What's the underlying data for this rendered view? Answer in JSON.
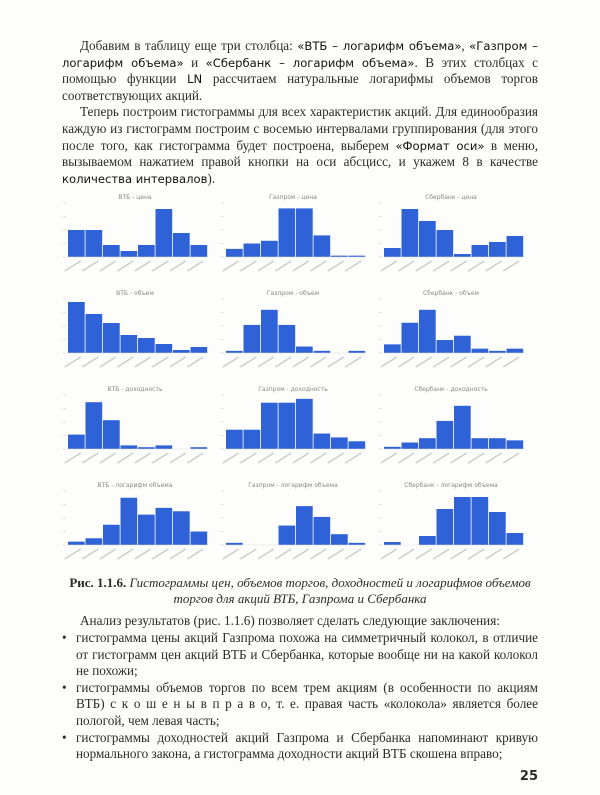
{
  "intro": {
    "p1_a": "Добавим в таблицу еще три столбца: ",
    "p1_b": "«ВТБ – логарифм объема»",
    "p1_c": ", ",
    "p1_d": "«Газпром – логарифм объема»",
    "p1_e": " и ",
    "p1_f": "«Сбербанк – логарифм объема»",
    "p1_g": ". В этих столбцах с помощью функции ",
    "p1_h": "LN",
    "p1_i": " рассчитаем натуральные логарифмы объемов торгов соответствующих акций.",
    "p2_a": "Теперь построим гистограммы для всех характеристик акций. Для единообразия каждую из гистограмм построим с восемью интервалами группирования (для этого после того, как гистограмма будет построена, выберем ",
    "p2_b": "«Формат оси»",
    "p2_c": " в меню, вызываемом нажатием правой кнопки на оси абсцисс, и укажем 8 в качестве ",
    "p2_d": "количества интервалов",
    "p2_e": ")."
  },
  "chart_data": [
    {
      "type": "bar",
      "title": "ВТБ - цена",
      "values": [
        9,
        9,
        4,
        2,
        4,
        16,
        8,
        4
      ],
      "ylim": [
        0,
        18
      ]
    },
    {
      "type": "bar",
      "title": "Газпром - цена",
      "values": [
        3,
        5,
        6,
        18,
        18,
        8,
        0.5,
        0.5
      ],
      "ylim": [
        0,
        20
      ]
    },
    {
      "type": "bar",
      "title": "Сбербанк - цена",
      "values": [
        3,
        16,
        12,
        9,
        1,
        4,
        5,
        7
      ],
      "ylim": [
        0,
        18
      ]
    },
    {
      "type": "bar",
      "title": "ВТБ - объем",
      "values": [
        17,
        13,
        10,
        6,
        5,
        3,
        1,
        2
      ],
      "ylim": [
        0,
        18
      ]
    },
    {
      "type": "bar",
      "title": "Газпром - объем",
      "values": [
        1,
        13,
        20,
        13,
        3,
        1,
        0,
        1
      ],
      "ylim": [
        0,
        25
      ]
    },
    {
      "type": "bar",
      "title": "Сбербанк - объем",
      "values": [
        4,
        14,
        20,
        6,
        8,
        2,
        1,
        2
      ],
      "ylim": [
        0,
        25
      ]
    },
    {
      "type": "bar",
      "title": "ВТБ - доходность",
      "values": [
        8,
        26,
        16,
        2,
        1,
        2,
        0,
        1
      ],
      "ylim": [
        0,
        30
      ]
    },
    {
      "type": "bar",
      "title": "Газпром - доходность",
      "values": [
        5,
        5,
        12,
        12,
        13,
        4,
        3,
        2
      ],
      "ylim": [
        0,
        14
      ]
    },
    {
      "type": "bar",
      "title": "Сбербанк - доходность",
      "values": [
        1,
        3,
        5,
        13,
        20,
        5,
        5,
        4
      ],
      "ylim": [
        0,
        25
      ]
    },
    {
      "type": "bar",
      "title": "ВТБ - логарифм объема",
      "values": [
        1,
        2,
        6,
        14,
        9,
        11,
        10,
        4
      ],
      "ylim": [
        0,
        16
      ]
    },
    {
      "type": "bar",
      "title": "Газпром - логарифм объема",
      "values": [
        1,
        0,
        0,
        9,
        18,
        13,
        5,
        1
      ],
      "ylim": [
        0,
        25
      ]
    },
    {
      "type": "bar",
      "title": "Сбербанк - логарифм объема",
      "values": [
        1,
        0,
        3,
        12,
        16,
        16,
        11,
        4
      ],
      "ylim": [
        0,
        18
      ]
    }
  ],
  "bar_color": "#2f62d6",
  "caption": {
    "label": "Рис. 1.1.6.",
    "text": " Гистограммы цен, объемов торгов, доходностей и логарифмов объемов торгов для акций ВТБ, Газпрома и Сбербанка"
  },
  "analysis": {
    "intro": "Анализ результатов (рис. 1.1.6) позволяет сделать следующие заключения:",
    "bullets": [
      "гистограмма цены акций Газпрома похожа на симметричный колокол, в отличие от гистограмм цен акций ВТБ и Сбербанка, которые вообще ни на какой колокол не похожи;",
      "гистограммы объемов торгов по всем трем акциям (в особенности по акциям ВТБ) с к о ш е н ы   в п р а в о, т. е. правая часть «колокола» является более пологой, чем левая часть;",
      "гистограммы доходностей акций Газпрома и Сбербанка напоминают кривую нормального закона, а гистограмма доходности акций ВТБ скошена вправо;"
    ]
  },
  "page_number": "25"
}
